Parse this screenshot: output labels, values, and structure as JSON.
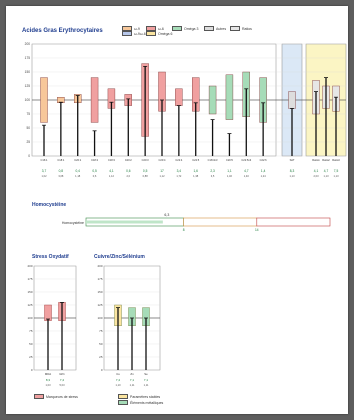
{
  "colors": {
    "omega9": "#f7c79a",
    "omega6": "#f0a0a0",
    "omega3": "#a6dcb8",
    "trans": "#dddddd",
    "saturated": "#e6e6e6",
    "highlight_blue": "#dbe8f6",
    "highlight_yellow": "#fbf5c4",
    "title": "#1f3d8f",
    "stress": "#f0a0a0",
    "cuivre": "#fbe5a0",
    "zinc": "#a6dcb8"
  },
  "main": {
    "title": "Acides Gras Erythrocytaires",
    "legend": [
      {
        "label": "ω-9",
        "color": "#f7c79a"
      },
      {
        "label": "ω-9ω-6",
        "color": "#b7c7ea"
      },
      {
        "label": "ω-6",
        "color": "#f0a0a0"
      },
      {
        "label": "Oméga 6",
        "color": "#fbe5a0"
      },
      {
        "label": "Oméga 3",
        "color": "#a6dcb8"
      },
      {
        "label": "Autres",
        "color": "#dddddd"
      },
      {
        "label": "Ratios",
        "color": "#e6e6e6"
      }
    ]
  },
  "homocysteine": {
    "title": "Homocystéine",
    "label": "Homocystéine",
    "value_label": "6,3",
    "tick_labels": [
      "8",
      "14"
    ]
  },
  "stress": {
    "title": "Stress Oxydatif",
    "legend_label": "Marqueurs de stress"
  },
  "cuivre": {
    "title": "Cuivre/Zinc/Sélénium",
    "legend": [
      "Paramètres stables",
      "Éléments métalliques"
    ]
  },
  "chart_data": [
    {
      "type": "bar",
      "title": "Acides Gras Erythrocytaires",
      "ylim": [
        0,
        200
      ],
      "yticks": [
        "0",
        "25",
        "50",
        "75",
        "100",
        "125",
        "150",
        "175",
        "200"
      ],
      "categories": [
        "C16:1",
        "C18:1",
        "C20:1",
        "C18:2",
        "C18:3",
        "C20:2",
        "C20:3",
        "C20:4",
        "C22:4",
        "C22:5",
        "C18:3n3",
        "C20:5",
        "C22:5n3",
        "C22:6",
        "SAT",
        "Ratio1",
        "Ratio2",
        "Ratio3"
      ],
      "groups": [
        "ω-9",
        "ω-9",
        "ω-9",
        "ω-6",
        "ω-6",
        "ω-6",
        "ω-6",
        "ω-6",
        "ω-6",
        "ω-6",
        "ω-3",
        "ω-3",
        "ω-3",
        "ω-3",
        "autres",
        "ratios",
        "ratios",
        "ratios"
      ],
      "ref_low": [
        60,
        95,
        95,
        60,
        85,
        90,
        35,
        80,
        90,
        80,
        75,
        65,
        70,
        60,
        85,
        75,
        85,
        80
      ],
      "ref_high": [
        140,
        105,
        110,
        140,
        120,
        110,
        165,
        150,
        120,
        140,
        125,
        145,
        150,
        140,
        115,
        135,
        125,
        125
      ],
      "values": [
        55,
        96,
        108,
        45,
        96,
        102,
        160,
        100,
        90,
        95,
        65,
        40,
        120,
        95,
        85,
        115,
        140,
        105
      ],
      "value_labels": [
        "3,7",
        "0,8",
        "0,4",
        "0,5",
        "4,1",
        "0,6",
        "0,5",
        "17",
        "3,4",
        "1,6",
        "2,3",
        "1,1",
        "4,7",
        "1,4",
        "8,3",
        "4,1",
        "4,7",
        "7,5"
      ],
      "range_labels": [
        "1,02",
        "3,08",
        "1,18",
        "0,6",
        "1,12",
        "2,0",
        "0,88",
        "1,12",
        "1,72",
        "1,38",
        "3,5",
        "1,46",
        "1,40",
        "1,24",
        "1,13",
        "2,03",
        "1,13",
        "1,13"
      ]
    },
    {
      "type": "bar",
      "title": "Homocystéine",
      "orientation": "horizontal",
      "categories": [
        "Homocystéine"
      ],
      "values": [
        6.3
      ],
      "range": [
        0,
        20
      ],
      "zones": [
        8,
        14
      ]
    },
    {
      "type": "bar",
      "title": "Stress Oxydatif",
      "ylim": [
        0,
        200
      ],
      "yticks": [
        "0",
        "25",
        "50",
        "75",
        "100",
        "125",
        "150",
        "175",
        "200"
      ],
      "categories": [
        "MDA",
        "GPx"
      ],
      "ref_low": [
        95,
        95
      ],
      "ref_high": [
        125,
        130
      ],
      "values": [
        98,
        130
      ],
      "value_labels": [
        "8,3",
        "7,4"
      ],
      "range_labels": [
        "1,03",
        "5,03"
      ]
    },
    {
      "type": "bar",
      "title": "Cuivre/Zinc/Sélénium",
      "ylim": [
        0,
        200
      ],
      "yticks": [
        "0",
        "25",
        "50",
        "75",
        "100",
        "125",
        "150",
        "175",
        "200"
      ],
      "categories": [
        "Cu",
        "Zn",
        "Se"
      ],
      "ref_low": [
        85,
        85,
        85
      ],
      "ref_high": [
        125,
        120,
        120
      ],
      "values": [
        120,
        100,
        100
      ],
      "value_labels": [
        "7,4",
        "7,1",
        "7,1"
      ],
      "range_labels": [
        "1,10",
        "1,11",
        "1,11"
      ]
    }
  ]
}
